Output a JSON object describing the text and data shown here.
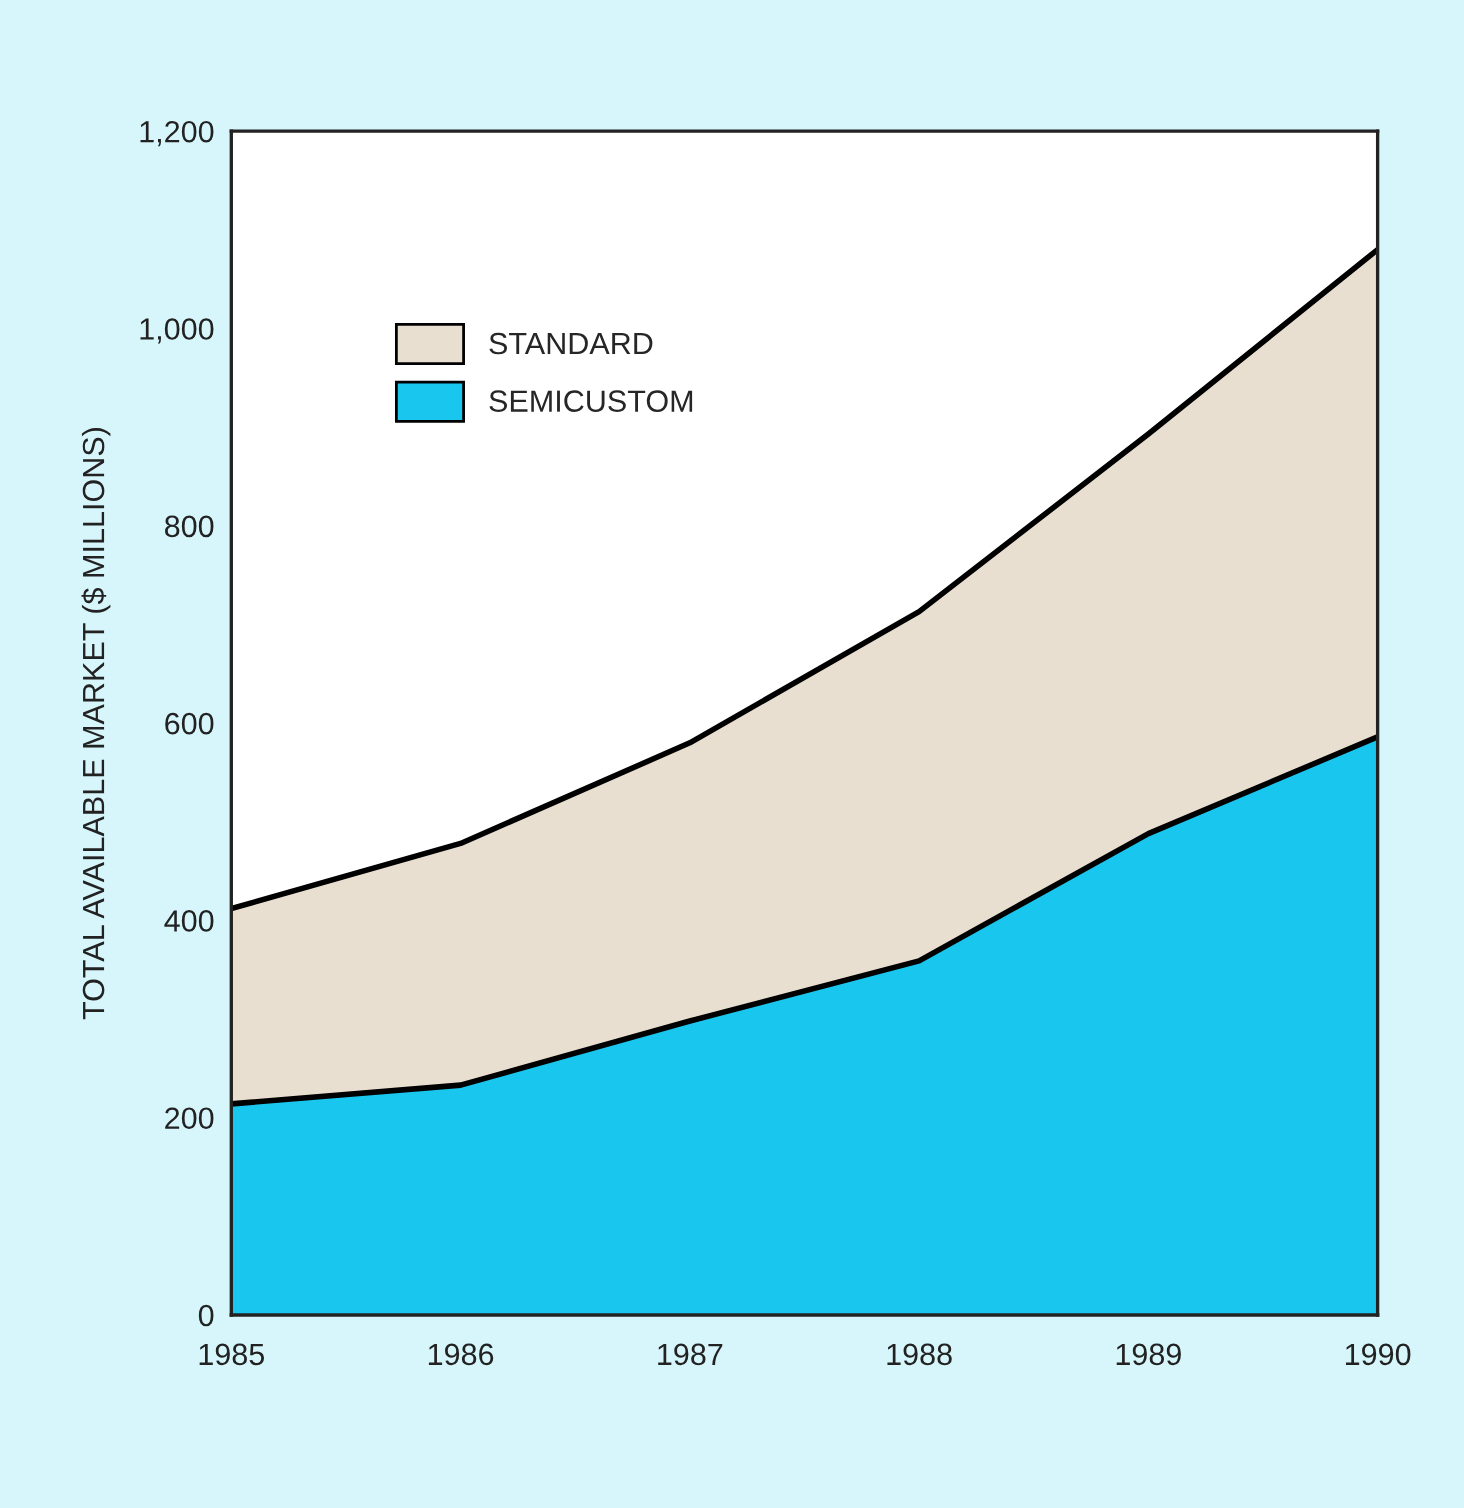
{
  "chart_data": {
    "type": "area",
    "stacked": true,
    "ylabel": "TOTAL AVAILABLE MARKET ($ MILLIONS)",
    "x": [
      1985,
      1986,
      1987,
      1988,
      1989,
      1990
    ],
    "series": [
      {
        "name": "SEMICUSTOM",
        "color": "#19c6ee",
        "values": [
          214,
          233,
          298,
          359,
          488,
          586
        ]
      },
      {
        "name": "STANDARD",
        "color": "#e8dfd0",
        "values": [
          198,
          245,
          282,
          354,
          405,
          494
        ]
      }
    ],
    "xlim": [
      1985,
      1990
    ],
    "xticks": [
      1985,
      1986,
      1987,
      1988,
      1989,
      1990
    ],
    "ylim": [
      0,
      1200
    ],
    "yticks": [
      0,
      {
        "value": 200,
        "label": "200"
      },
      {
        "value": 400,
        "label": "400"
      },
      {
        "value": 600,
        "label": "600"
      },
      {
        "value": 800,
        "label": "800"
      },
      {
        "value": 1000,
        "label": "1,000"
      },
      {
        "value": 1200,
        "label": "1,200"
      }
    ],
    "legend": "top left",
    "grid": false
  }
}
